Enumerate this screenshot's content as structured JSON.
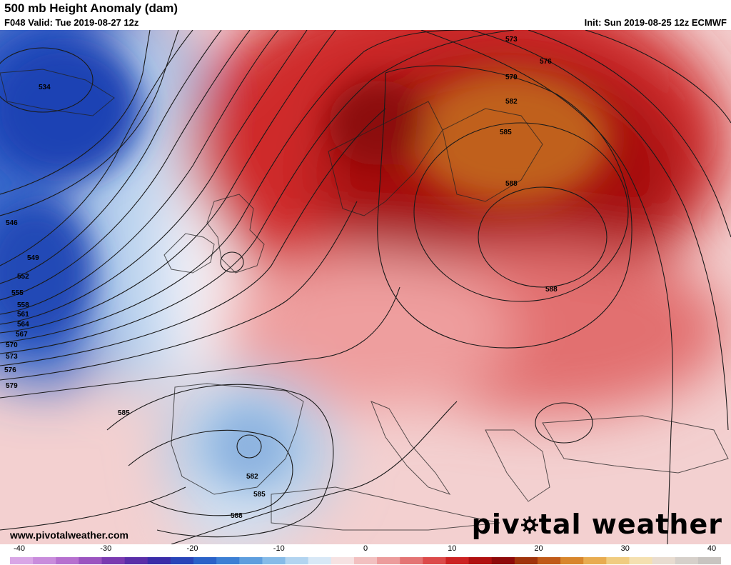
{
  "header": {
    "title": "500 mb Height Anomaly (dam)",
    "valid": "F048 Valid: Tue 2019-08-27 12z",
    "init": "Init: Sun 2019-08-25 12z ECMWF"
  },
  "footer": {
    "website": "www.pivotalweather.com",
    "brand_left": "piv",
    "brand_right": "tal weather"
  },
  "colorbar": {
    "ticks": [
      "-40",
      "-30",
      "-20",
      "-10",
      "0",
      "10",
      "20",
      "30",
      "40"
    ],
    "colors": [
      "#d9a6e6",
      "#c98cdc",
      "#b670cf",
      "#9b54c0",
      "#7a3ab0",
      "#5a2ea8",
      "#3a2ca8",
      "#2844b8",
      "#2a62c8",
      "#3c7fd4",
      "#5e9ede",
      "#86bbe8",
      "#b2d4f0",
      "#d8e8f6",
      "#f6e2e2",
      "#f2c0c0",
      "#ec9c9c",
      "#e47474",
      "#dc4a4a",
      "#cc2222",
      "#b01010",
      "#8e0a0a",
      "#a0340c",
      "#c05a18",
      "#d8862c",
      "#e8ac50",
      "#f0cc80",
      "#f4e0b0",
      "#e8dcd0",
      "#d6d0ca",
      "#c8c4c0"
    ]
  },
  "contour_labels": [
    "534",
    "546",
    "549",
    "552",
    "555",
    "558",
    "561",
    "564",
    "567",
    "570",
    "573",
    "576",
    "579",
    "585",
    "582",
    "585",
    "588",
    "573",
    "576",
    "579",
    "582",
    "585",
    "588",
    "588"
  ]
}
